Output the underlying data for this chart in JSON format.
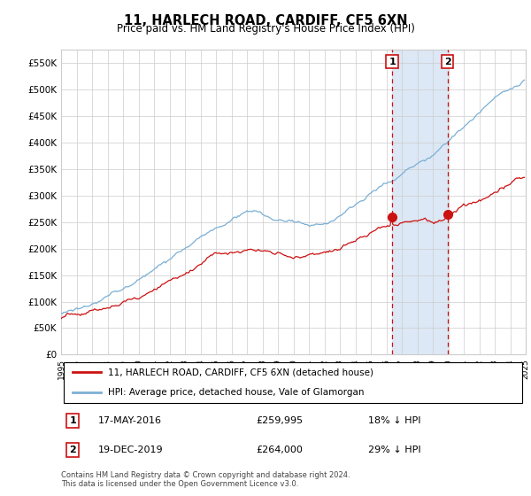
{
  "title": "11, HARLECH ROAD, CARDIFF, CF5 6XN",
  "subtitle": "Price paid vs. HM Land Registry's House Price Index (HPI)",
  "legend_line1": "11, HARLECH ROAD, CARDIFF, CF5 6XN (detached house)",
  "legend_line2": "HPI: Average price, detached house, Vale of Glamorgan",
  "annotation1_date": "17-MAY-2016",
  "annotation1_price": 259995,
  "annotation1_hpi_pct": "18% ↓ HPI",
  "annotation1_year": 2016.38,
  "annotation2_date": "19-DEC-2019",
  "annotation2_price": 264000,
  "annotation2_hpi_pct": "29% ↓ HPI",
  "annotation2_year": 2019.96,
  "footer": "Contains HM Land Registry data © Crown copyright and database right 2024.\nThis data is licensed under the Open Government Licence v3.0.",
  "hpi_color": "#7bafd4",
  "hpi_fill_color": "#dce8f5",
  "price_color": "#cc1111",
  "annotation_color": "#cc1111",
  "ylim_min": 0,
  "ylim_max": 575000,
  "yticks": [
    0,
    50000,
    100000,
    150000,
    200000,
    250000,
    300000,
    350000,
    400000,
    450000,
    500000,
    550000
  ],
  "year_start": 1995,
  "year_end": 2025,
  "bg_color": "#ffffff",
  "grid_color": "#cccccc"
}
